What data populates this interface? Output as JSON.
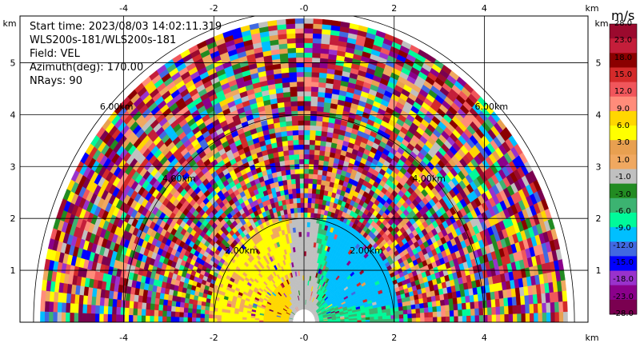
{
  "header": {
    "start_time": "Start time: 2023/08/03 14:02:11.319",
    "instrument": "WLS200s-181/WLS200s-181",
    "field": "Field: VEL",
    "azimuth": "Azimuth(deg): 170.00",
    "nrays": "NRays: 90"
  },
  "colorbar": {
    "title": "m/s",
    "labels": [
      "28.0",
      "23.0",
      "18.0",
      "15.0",
      "12.0",
      "9.0",
      "6.0",
      "3.0",
      "1.0",
      "-1.0",
      "-3.0",
      "-6.0",
      "-9.0",
      "-12.0",
      "-15.0",
      "-18.0",
      "-23.0",
      "-28.0"
    ],
    "colors": [
      "#9b0a2e",
      "#c41e3a",
      "#8b0000",
      "#d42a2a",
      "#f0565b",
      "#ff8c7a",
      "#ffd700",
      "#ffff00",
      "#e8a050",
      "#f0a860",
      "#c0c0c0",
      "#228b22",
      "#3cb371",
      "#00fa9a",
      "#00bfff",
      "#4169e1",
      "#0000ff",
      "#9932cc",
      "#8b008b",
      "#7a0050"
    ]
  },
  "chart_data": {
    "type": "heatmap",
    "title": "",
    "xlabel": "km",
    "ylabel": "km",
    "xlim": [
      -6.3,
      6.3
    ],
    "ylim": [
      0,
      5.9
    ],
    "x_ticks": [
      "-4",
      "-2",
      "-0",
      "2",
      "4"
    ],
    "y_ticks": [
      "1",
      "2",
      "3",
      "4",
      "5"
    ],
    "max_range_km": 5.85,
    "range_rings": [
      "2.00km",
      "4.00km",
      "6.00km"
    ],
    "grid": true,
    "velocity_unit": "m/s",
    "near_field_pattern": {
      "left_side_velocity": 7.0,
      "right_side_velocity": -9.0,
      "center_velocity": 0.0,
      "extent_km": 2.1
    }
  }
}
